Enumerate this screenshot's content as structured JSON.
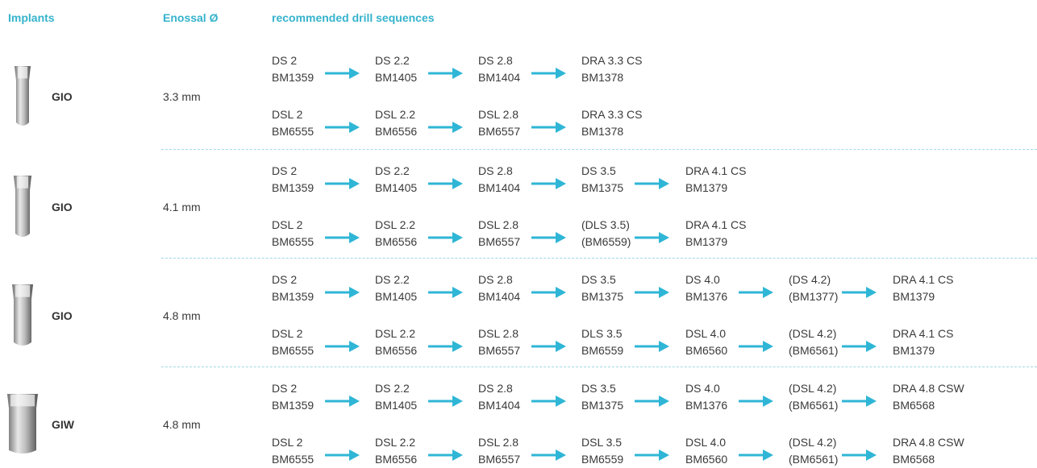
{
  "header": {
    "implants": "Implants",
    "diameter": "Enossal Ø",
    "sequences": "recommended drill sequences"
  },
  "groups": [
    {
      "implant": "GIO",
      "diameter": "3.3 mm",
      "sequences": [
        [
          {
            "code": "DS 2",
            "ref": "BM1359"
          },
          {
            "code": "DS 2.2",
            "ref": "BM1405"
          },
          {
            "code": "DS 2.8",
            "ref": "BM1404"
          },
          {
            "code": "DRA 3.3 CS",
            "ref": "BM1378"
          }
        ],
        [
          {
            "code": "DSL 2",
            "ref": "BM6555"
          },
          {
            "code": "DSL 2.2",
            "ref": "BM6556"
          },
          {
            "code": "DSL 2.8",
            "ref": "BM6557"
          },
          {
            "code": "DRA 3.3 CS",
            "ref": "BM1378"
          }
        ]
      ]
    },
    {
      "implant": "GIO",
      "diameter": "4.1 mm",
      "sequences": [
        [
          {
            "code": "DS 2",
            "ref": "BM1359"
          },
          {
            "code": "DS 2.2",
            "ref": "BM1405"
          },
          {
            "code": "DS 2.8",
            "ref": "BM1404"
          },
          {
            "code": "DS 3.5",
            "ref": "BM1375"
          },
          {
            "code": "DRA 4.1 CS",
            "ref": "BM1379"
          }
        ],
        [
          {
            "code": "DSL 2",
            "ref": "BM6555"
          },
          {
            "code": "DSL 2.2",
            "ref": "BM6556"
          },
          {
            "code": "DSL 2.8",
            "ref": "BM6557"
          },
          {
            "code": "(DLS 3.5)",
            "ref": "(BM6559)"
          },
          {
            "code": "DRA 4.1 CS",
            "ref": "BM1379"
          }
        ]
      ]
    },
    {
      "implant": "GIO",
      "diameter": "4.8 mm",
      "sequences": [
        [
          {
            "code": "DS 2",
            "ref": "BM1359"
          },
          {
            "code": "DS 2.2",
            "ref": "BM1405"
          },
          {
            "code": "DS 2.8",
            "ref": "BM1404"
          },
          {
            "code": "DS 3.5",
            "ref": "BM1375"
          },
          {
            "code": "DS 4.0",
            "ref": "BM1376"
          },
          {
            "code": "(DS 4.2)",
            "ref": "(BM1377)"
          },
          {
            "code": "DRA 4.1 CS",
            "ref": "BM1379"
          }
        ],
        [
          {
            "code": "DSL 2",
            "ref": "BM6555"
          },
          {
            "code": "DSL 2.2",
            "ref": "BM6556"
          },
          {
            "code": "DSL 2.8",
            "ref": "BM6557"
          },
          {
            "code": "DLS 3.5",
            "ref": "BM6559"
          },
          {
            "code": "DSL 4.0",
            "ref": "BM6560"
          },
          {
            "code": "(DSL 4.2)",
            "ref": "(BM6561)"
          },
          {
            "code": "DRA 4.1 CS",
            "ref": "BM1379"
          }
        ]
      ]
    },
    {
      "implant": "GIW",
      "diameter": "4.8 mm",
      "sequences": [
        [
          {
            "code": "DS 2",
            "ref": "BM1359"
          },
          {
            "code": "DS 2.2",
            "ref": "BM1405"
          },
          {
            "code": "DS 2.8",
            "ref": "BM1404"
          },
          {
            "code": "DS 3.5",
            "ref": "BM1375"
          },
          {
            "code": "DS 4.0",
            "ref": "BM1376"
          },
          {
            "code": "(DSL 4.2)",
            "ref": "(BM6561)"
          },
          {
            "code": "DRA 4.8 CSW",
            "ref": "BM6568"
          }
        ],
        [
          {
            "code": "DSL 2",
            "ref": "BM6555"
          },
          {
            "code": "DSL 2.2",
            "ref": "BM6556"
          },
          {
            "code": "DSL 2.8",
            "ref": "BM6557"
          },
          {
            "code": "DSL 3.5",
            "ref": "BM6559"
          },
          {
            "code": "DSL 4.0",
            "ref": "BM6560"
          },
          {
            "code": "(DSL 4.2)",
            "ref": "(BM6561)"
          },
          {
            "code": "DRA 4.8 CSW",
            "ref": "BM6568"
          }
        ]
      ]
    }
  ]
}
